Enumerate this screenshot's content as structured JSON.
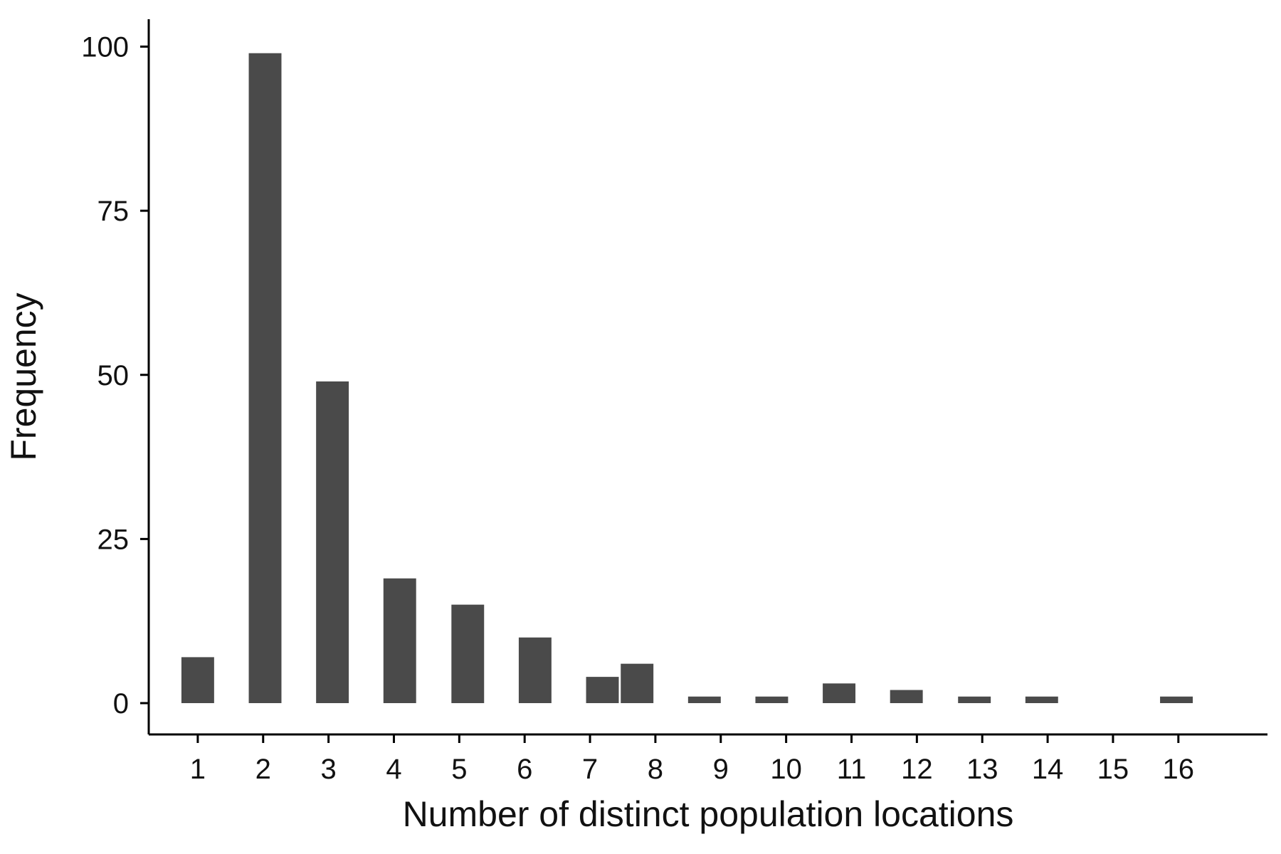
{
  "chart_data": {
    "type": "bar",
    "title": "",
    "xlabel": "Number of distinct population locations",
    "ylabel": "Frequency",
    "xlim": [
      0,
      17.5
    ],
    "ylim": [
      -5,
      104
    ],
    "x_ticks": [
      1,
      2,
      3,
      4,
      5,
      6,
      7,
      8,
      9,
      10,
      11,
      12,
      13,
      14,
      15,
      16
    ],
    "y_ticks": [
      0,
      25,
      50,
      75,
      100
    ],
    "grid": false,
    "legend": "none",
    "bar_color": "#4a4a4a",
    "bars": [
      {
        "x_start": 0.75,
        "x_end": 1.25,
        "value": 7
      },
      {
        "x_start": 1.78,
        "x_end": 2.28,
        "value": 99
      },
      {
        "x_start": 2.81,
        "x_end": 3.31,
        "value": 49
      },
      {
        "x_start": 3.84,
        "x_end": 4.34,
        "value": 19
      },
      {
        "x_start": 4.88,
        "x_end": 5.38,
        "value": 15
      },
      {
        "x_start": 5.91,
        "x_end": 6.41,
        "value": 10
      },
      {
        "x_start": 6.94,
        "x_end": 7.44,
        "value": 4
      },
      {
        "x_start": 7.47,
        "x_end": 7.97,
        "value": 6
      },
      {
        "x_start": 8.5,
        "x_end": 9.0,
        "value": 1
      },
      {
        "x_start": 9.53,
        "x_end": 10.03,
        "value": 1
      },
      {
        "x_start": 10.56,
        "x_end": 11.06,
        "value": 3
      },
      {
        "x_start": 11.59,
        "x_end": 12.09,
        "value": 2
      },
      {
        "x_start": 12.63,
        "x_end": 13.13,
        "value": 1
      },
      {
        "x_start": 13.66,
        "x_end": 14.16,
        "value": 1
      },
      {
        "x_start": 15.72,
        "x_end": 16.22,
        "value": 1
      }
    ]
  }
}
